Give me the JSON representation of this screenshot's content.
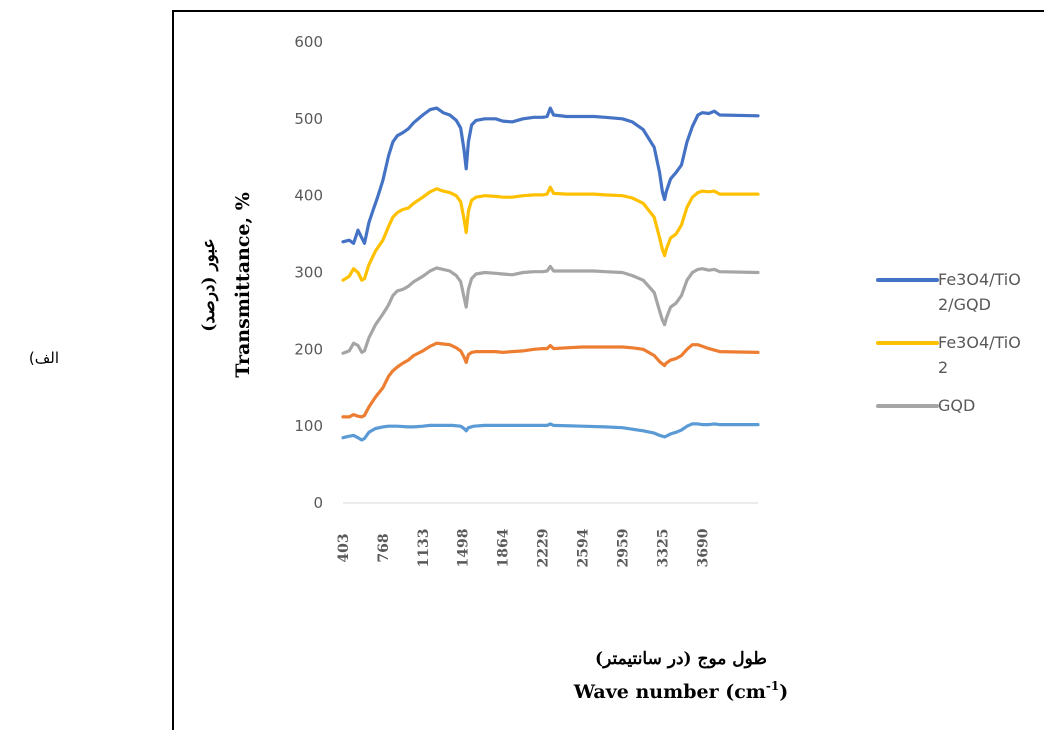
{
  "figure": {
    "side_label": "(الف"
  },
  "chart_data": {
    "type": "line",
    "xlabel_fa": "طول موج (در سانتیمتر)",
    "xlabel_en": "Wave number (cm-1)",
    "xlabel_en_base": "Wave number (cm",
    "xlabel_en_sup": "-1",
    "xlabel_en_tail": ")",
    "ylabel_fa": "عبور (درصد)",
    "ylabel_en": "Transmittance, %",
    "ylim": [
      0,
      600
    ],
    "y_ticks": [
      0,
      100,
      200,
      300,
      400,
      500,
      600
    ],
    "xlim": [
      403,
      4200
    ],
    "x_ticks": [
      "403",
      "768",
      "1133",
      "1498",
      "1864",
      "2229",
      "2594",
      "2959",
      "3325",
      "3690"
    ],
    "grid": false,
    "legend_position": "right",
    "series": [
      {
        "name": "Fe3O4/TiO2/GQD",
        "legend_lines": [
          "Fe3O4/TiO",
          "2/GQD"
        ],
        "color": "#4472C4",
        "points": [
          [
            403,
            340
          ],
          [
            460,
            342
          ],
          [
            500,
            338
          ],
          [
            540,
            355
          ],
          [
            575,
            345
          ],
          [
            600,
            338
          ],
          [
            640,
            365
          ],
          [
            680,
            382
          ],
          [
            720,
            398
          ],
          [
            768,
            420
          ],
          [
            820,
            452
          ],
          [
            860,
            470
          ],
          [
            900,
            478
          ],
          [
            950,
            482
          ],
          [
            1000,
            487
          ],
          [
            1050,
            495
          ],
          [
            1133,
            505
          ],
          [
            1200,
            512
          ],
          [
            1260,
            514
          ],
          [
            1320,
            508
          ],
          [
            1380,
            505
          ],
          [
            1440,
            498
          ],
          [
            1480,
            488
          ],
          [
            1510,
            460
          ],
          [
            1530,
            435
          ],
          [
            1550,
            470
          ],
          [
            1580,
            492
          ],
          [
            1620,
            498
          ],
          [
            1700,
            500
          ],
          [
            1800,
            500
          ],
          [
            1864,
            497
          ],
          [
            1950,
            496
          ],
          [
            2050,
            500
          ],
          [
            2150,
            502
          ],
          [
            2229,
            502
          ],
          [
            2270,
            503
          ],
          [
            2300,
            514
          ],
          [
            2330,
            505
          ],
          [
            2450,
            503
          ],
          [
            2594,
            503
          ],
          [
            2700,
            503
          ],
          [
            2800,
            502
          ],
          [
            2959,
            500
          ],
          [
            3050,
            496
          ],
          [
            3150,
            486
          ],
          [
            3250,
            463
          ],
          [
            3300,
            430
          ],
          [
            3325,
            405
          ],
          [
            3345,
            395
          ],
          [
            3360,
            405
          ],
          [
            3400,
            422
          ],
          [
            3450,
            430
          ],
          [
            3500,
            440
          ],
          [
            3550,
            470
          ],
          [
            3600,
            490
          ],
          [
            3650,
            505
          ],
          [
            3690,
            508
          ],
          [
            3750,
            507
          ],
          [
            3800,
            510
          ],
          [
            3850,
            505
          ],
          [
            4200,
            504
          ]
        ]
      },
      {
        "name": "Fe3O4/TiO2",
        "legend_lines": [
          "Fe3O4/TiO",
          "2"
        ],
        "color": "#FFC000",
        "points": [
          [
            403,
            290
          ],
          [
            460,
            295
          ],
          [
            500,
            305
          ],
          [
            540,
            300
          ],
          [
            575,
            290
          ],
          [
            600,
            292
          ],
          [
            640,
            310
          ],
          [
            700,
            328
          ],
          [
            768,
            342
          ],
          [
            820,
            360
          ],
          [
            860,
            372
          ],
          [
            900,
            378
          ],
          [
            950,
            382
          ],
          [
            1000,
            384
          ],
          [
            1050,
            390
          ],
          [
            1133,
            398
          ],
          [
            1200,
            405
          ],
          [
            1260,
            409
          ],
          [
            1320,
            406
          ],
          [
            1380,
            404
          ],
          [
            1440,
            400
          ],
          [
            1480,
            392
          ],
          [
            1510,
            370
          ],
          [
            1530,
            352
          ],
          [
            1550,
            380
          ],
          [
            1580,
            394
          ],
          [
            1620,
            398
          ],
          [
            1700,
            400
          ],
          [
            1800,
            399
          ],
          [
            1864,
            398
          ],
          [
            1950,
            398
          ],
          [
            2050,
            400
          ],
          [
            2150,
            401
          ],
          [
            2229,
            401
          ],
          [
            2270,
            402
          ],
          [
            2300,
            411
          ],
          [
            2330,
            403
          ],
          [
            2450,
            402
          ],
          [
            2594,
            402
          ],
          [
            2700,
            402
          ],
          [
            2800,
            401
          ],
          [
            2959,
            400
          ],
          [
            3050,
            397
          ],
          [
            3150,
            390
          ],
          [
            3250,
            372
          ],
          [
            3300,
            345
          ],
          [
            3325,
            330
          ],
          [
            3345,
            322
          ],
          [
            3360,
            330
          ],
          [
            3400,
            345
          ],
          [
            3450,
            350
          ],
          [
            3500,
            362
          ],
          [
            3550,
            385
          ],
          [
            3600,
            398
          ],
          [
            3650,
            404
          ],
          [
            3690,
            406
          ],
          [
            3750,
            405
          ],
          [
            3800,
            406
          ],
          [
            3850,
            402
          ],
          [
            4200,
            402
          ]
        ]
      },
      {
        "name": "GQD",
        "legend_lines": [
          "GQD"
        ],
        "color": "#A5A5A5",
        "points": [
          [
            403,
            195
          ],
          [
            460,
            198
          ],
          [
            500,
            208
          ],
          [
            540,
            205
          ],
          [
            575,
            196
          ],
          [
            600,
            198
          ],
          [
            640,
            215
          ],
          [
            700,
            232
          ],
          [
            768,
            246
          ],
          [
            820,
            258
          ],
          [
            860,
            270
          ],
          [
            900,
            276
          ],
          [
            950,
            278
          ],
          [
            1000,
            282
          ],
          [
            1050,
            288
          ],
          [
            1133,
            295
          ],
          [
            1200,
            302
          ],
          [
            1260,
            306
          ],
          [
            1320,
            304
          ],
          [
            1380,
            302
          ],
          [
            1440,
            296
          ],
          [
            1480,
            288
          ],
          [
            1510,
            268
          ],
          [
            1530,
            255
          ],
          [
            1550,
            278
          ],
          [
            1580,
            292
          ],
          [
            1620,
            298
          ],
          [
            1700,
            300
          ],
          [
            1800,
            299
          ],
          [
            1864,
            298
          ],
          [
            1950,
            297
          ],
          [
            2050,
            300
          ],
          [
            2150,
            301
          ],
          [
            2229,
            301
          ],
          [
            2270,
            302
          ],
          [
            2300,
            308
          ],
          [
            2330,
            302
          ],
          [
            2450,
            302
          ],
          [
            2594,
            302
          ],
          [
            2700,
            302
          ],
          [
            2800,
            301
          ],
          [
            2959,
            300
          ],
          [
            3050,
            296
          ],
          [
            3150,
            290
          ],
          [
            3250,
            274
          ],
          [
            3300,
            250
          ],
          [
            3325,
            238
          ],
          [
            3345,
            232
          ],
          [
            3360,
            240
          ],
          [
            3400,
            255
          ],
          [
            3450,
            260
          ],
          [
            3500,
            270
          ],
          [
            3550,
            290
          ],
          [
            3600,
            300
          ],
          [
            3650,
            304
          ],
          [
            3690,
            305
          ],
          [
            3750,
            303
          ],
          [
            3800,
            304
          ],
          [
            3850,
            301
          ],
          [
            4200,
            300
          ]
        ]
      },
      {
        "name": "",
        "legend_lines": [],
        "color": "#ED7D31",
        "points": [
          [
            403,
            112
          ],
          [
            460,
            112
          ],
          [
            500,
            115
          ],
          [
            540,
            113
          ],
          [
            575,
            112
          ],
          [
            600,
            114
          ],
          [
            640,
            125
          ],
          [
            700,
            138
          ],
          [
            768,
            150
          ],
          [
            820,
            165
          ],
          [
            860,
            172
          ],
          [
            900,
            177
          ],
          [
            950,
            182
          ],
          [
            1000,
            186
          ],
          [
            1050,
            192
          ],
          [
            1133,
            198
          ],
          [
            1200,
            204
          ],
          [
            1260,
            208
          ],
          [
            1320,
            207
          ],
          [
            1380,
            206
          ],
          [
            1440,
            202
          ],
          [
            1480,
            198
          ],
          [
            1510,
            190
          ],
          [
            1530,
            183
          ],
          [
            1550,
            193
          ],
          [
            1580,
            196
          ],
          [
            1620,
            197
          ],
          [
            1700,
            197
          ],
          [
            1800,
            197
          ],
          [
            1864,
            196
          ],
          [
            1950,
            197
          ],
          [
            2050,
            198
          ],
          [
            2150,
            200
          ],
          [
            2229,
            201
          ],
          [
            2270,
            201
          ],
          [
            2300,
            205
          ],
          [
            2330,
            201
          ],
          [
            2450,
            202
          ],
          [
            2594,
            203
          ],
          [
            2700,
            203
          ],
          [
            2800,
            203
          ],
          [
            2959,
            203
          ],
          [
            3050,
            202
          ],
          [
            3150,
            200
          ],
          [
            3250,
            192
          ],
          [
            3300,
            184
          ],
          [
            3325,
            181
          ],
          [
            3345,
            179
          ],
          [
            3360,
            182
          ],
          [
            3400,
            186
          ],
          [
            3450,
            188
          ],
          [
            3500,
            192
          ],
          [
            3550,
            200
          ],
          [
            3600,
            206
          ],
          [
            3650,
            206
          ],
          [
            3690,
            204
          ],
          [
            3750,
            201
          ],
          [
            3800,
            199
          ],
          [
            3850,
            197
          ],
          [
            4200,
            196
          ]
        ]
      },
      {
        "name": "",
        "legend_lines": [],
        "color": "#5B9BD5",
        "points": [
          [
            403,
            85
          ],
          [
            460,
            87
          ],
          [
            500,
            88
          ],
          [
            540,
            85
          ],
          [
            575,
            82
          ],
          [
            600,
            84
          ],
          [
            640,
            92
          ],
          [
            700,
            97
          ],
          [
            768,
            99
          ],
          [
            820,
            100
          ],
          [
            900,
            100
          ],
          [
            1000,
            99
          ],
          [
            1050,
            99
          ],
          [
            1133,
            100
          ],
          [
            1200,
            101
          ],
          [
            1300,
            101
          ],
          [
            1400,
            101
          ],
          [
            1480,
            100
          ],
          [
            1510,
            97
          ],
          [
            1530,
            94
          ],
          [
            1550,
            98
          ],
          [
            1600,
            100
          ],
          [
            1700,
            101
          ],
          [
            1864,
            101
          ],
          [
            2050,
            101
          ],
          [
            2229,
            101
          ],
          [
            2270,
            101
          ],
          [
            2300,
            103
          ],
          [
            2330,
            101
          ],
          [
            2594,
            100
          ],
          [
            2800,
            99
          ],
          [
            2959,
            98
          ],
          [
            3050,
            96
          ],
          [
            3150,
            94
          ],
          [
            3250,
            91
          ],
          [
            3300,
            88
          ],
          [
            3325,
            87
          ],
          [
            3345,
            86
          ],
          [
            3360,
            87
          ],
          [
            3400,
            90
          ],
          [
            3450,
            92
          ],
          [
            3500,
            95
          ],
          [
            3550,
            100
          ],
          [
            3600,
            103
          ],
          [
            3650,
            103
          ],
          [
            3690,
            102
          ],
          [
            3750,
            102
          ],
          [
            3800,
            103
          ],
          [
            3850,
            102
          ],
          [
            4200,
            102
          ]
        ]
      }
    ]
  }
}
